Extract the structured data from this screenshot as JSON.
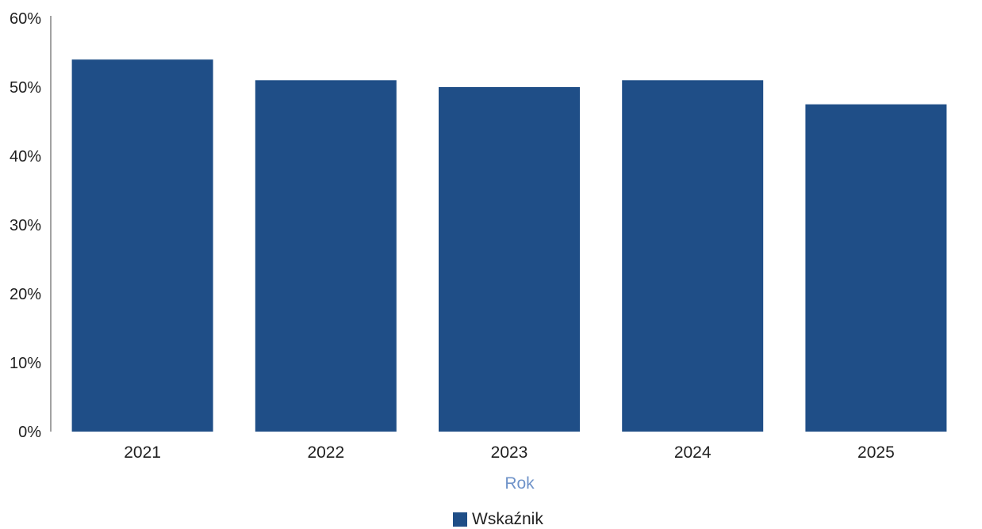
{
  "chart_data": {
    "type": "bar",
    "categories": [
      "2021",
      "2022",
      "2023",
      "2024",
      "2025"
    ],
    "series": [
      {
        "name": "Wskaźnik",
        "values": [
          54,
          51,
          50,
          51,
          47.5
        ],
        "color": "#1f4e87"
      }
    ],
    "xlabel": "Rok",
    "ylabel": "",
    "ylim": [
      0,
      60
    ],
    "yticks": [
      "0%",
      "10%",
      "20%",
      "30%",
      "40%",
      "50%",
      "60%"
    ],
    "grid": false,
    "legend": "bottom-center"
  }
}
